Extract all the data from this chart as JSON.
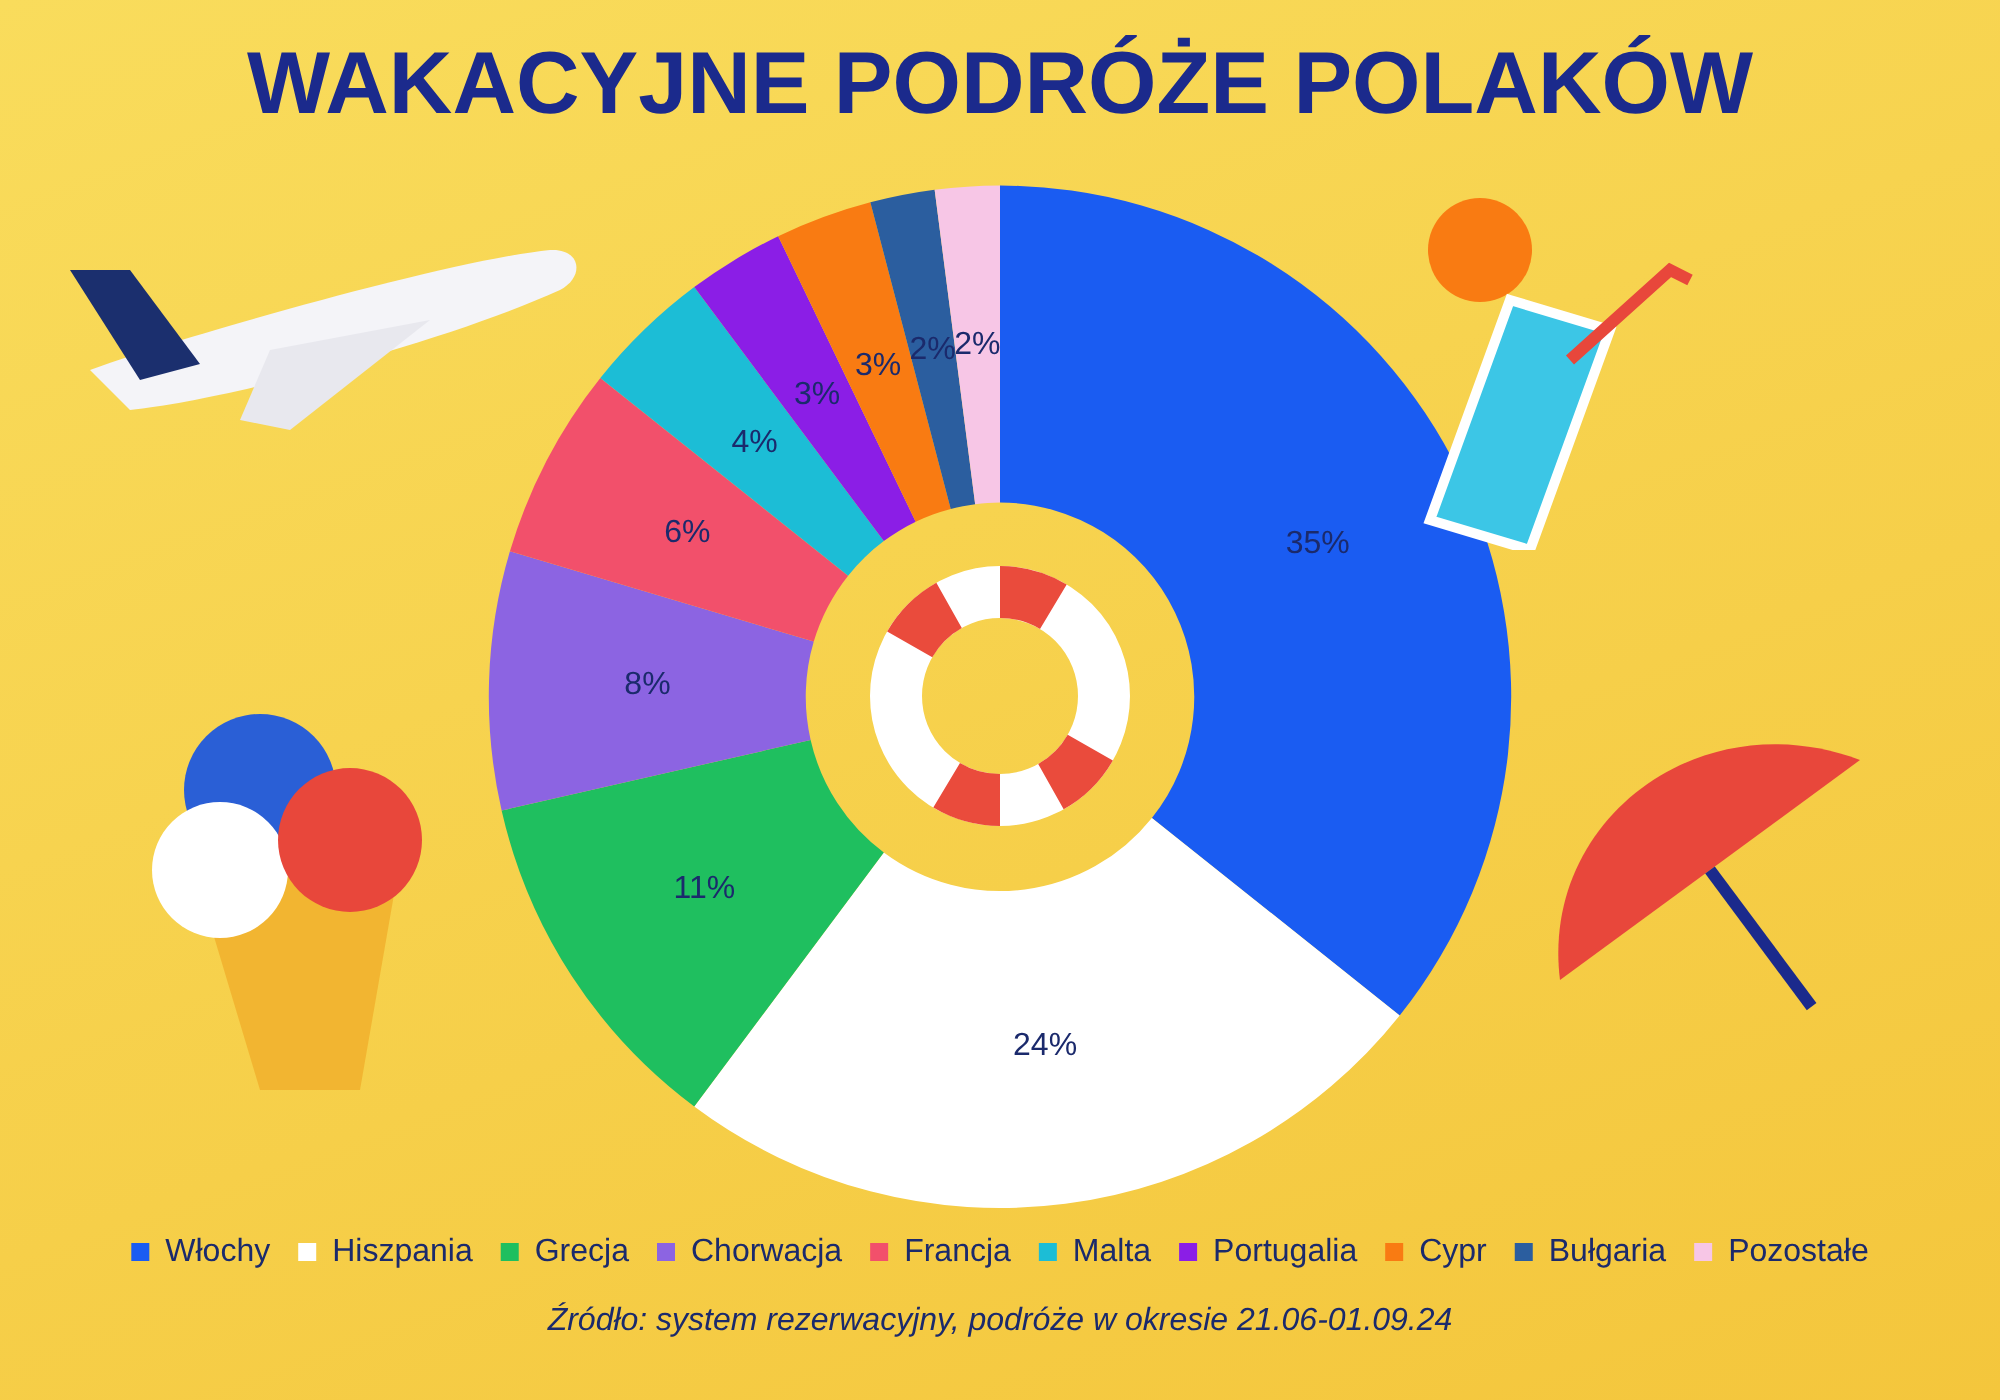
{
  "chart_data": {
    "type": "donut",
    "title": "WAKACYJNE PODRÓŻE POLAKÓW",
    "categories": [
      "Włochy",
      "Hiszpania",
      "Grecja",
      "Chorwacja",
      "Francja",
      "Malta",
      "Portugalia",
      "Cypr",
      "Bułgaria",
      "Pozostałe"
    ],
    "values": [
      35,
      24,
      11,
      8,
      6,
      4,
      3,
      3,
      2,
      2
    ],
    "value_labels": [
      "35%",
      "24%",
      "11%",
      "8%",
      "6%",
      "4%",
      "3%",
      "3%",
      "2%",
      "2%"
    ],
    "colors": [
      "#1a5cf2",
      "#ffffff",
      "#1fbf5f",
      "#8c64e2",
      "#f2506b",
      "#1cbdd6",
      "#8b1ee6",
      "#f97b12",
      "#2b5e9f",
      "#f7c6e6"
    ],
    "legend": "bottom",
    "annotations": [
      "Źródło: system rezerwacyjny, podróże w okresie 21.06-01.09.24"
    ]
  }
}
